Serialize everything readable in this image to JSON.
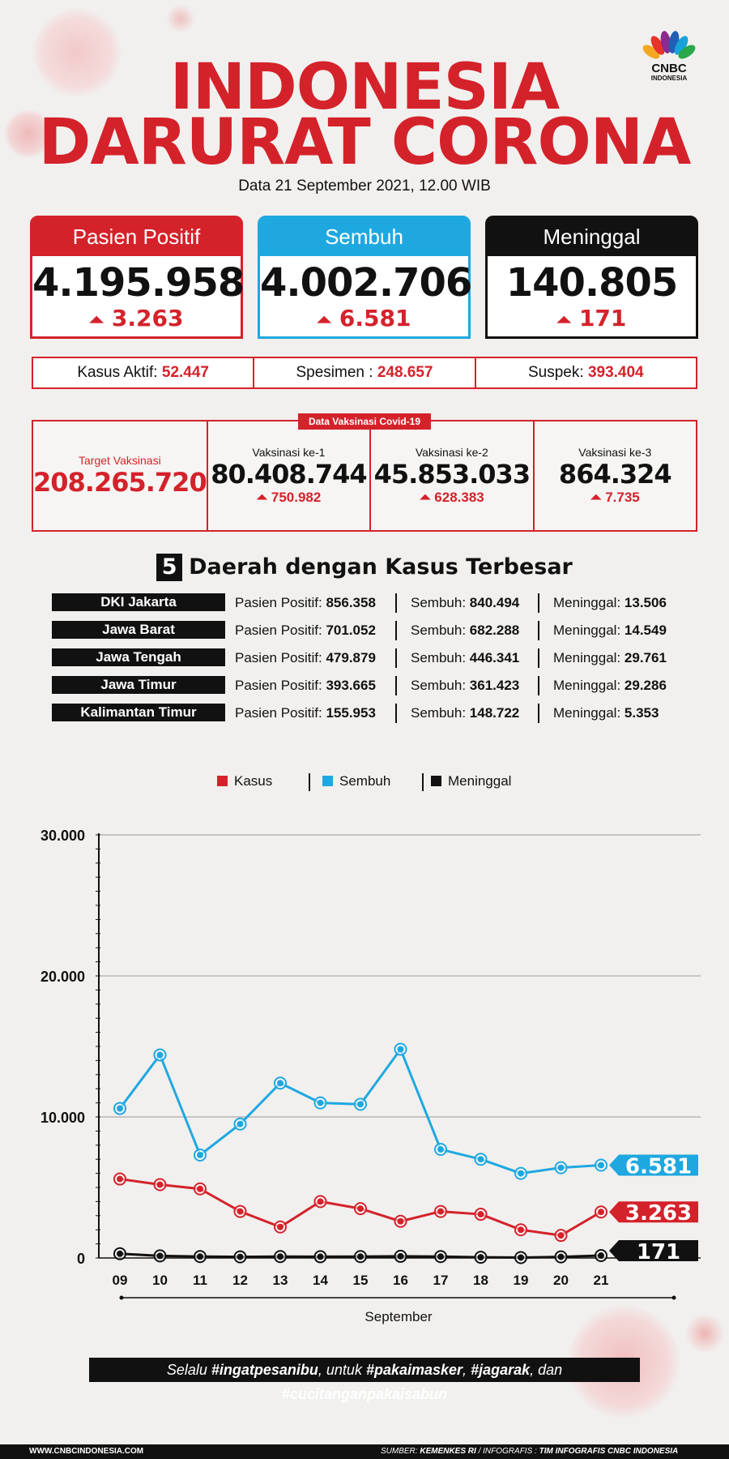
{
  "header": {
    "title_line1": "INDONESIA",
    "title_line2": "DARURAT CORONA",
    "logo_text": "CNBC",
    "logo_sub": "INDONESIA",
    "date": "Data 21 September 2021, 12.00 WIB"
  },
  "cards": [
    {
      "label": "Pasien Positif",
      "value": "4.195.958",
      "delta": "3.263",
      "color": "#d4222b"
    },
    {
      "label": "Sembuh",
      "value": "4.002.706",
      "delta": "6.581",
      "color": "#1fa8e0"
    },
    {
      "label": "Meninggal",
      "value": "140.805",
      "delta": "171",
      "color": "#111111"
    }
  ],
  "summary": [
    {
      "label": "Kasus Aktif:",
      "value": "52.447"
    },
    {
      "label": "Spesimen :",
      "value": "248.657"
    },
    {
      "label": "Suspek:",
      "value": "393.404"
    }
  ],
  "vaccine": {
    "tag": "Data Vaksinasi Covid-19",
    "target_label": "Target Vaksinasi",
    "target_value": "208.265.720",
    "doses": [
      {
        "label": "Vaksinasi ke-1",
        "value": "80.408.744",
        "delta": "750.982"
      },
      {
        "label": "Vaksinasi ke-2",
        "value": "45.853.033",
        "delta": "628.383"
      },
      {
        "label": "Vaksinasi ke-3",
        "value": "864.324",
        "delta": "7.735"
      }
    ]
  },
  "regions": {
    "number": "5",
    "title": "Daerah dengan Kasus Terbesar",
    "label_positif": "Pasien Positif:",
    "label_sembuh": "Sembuh:",
    "label_meninggal": "Meninggal:",
    "rows": [
      {
        "name": "DKI Jakarta",
        "positif": "856.358",
        "sembuh": "840.494",
        "meninggal": "13.506"
      },
      {
        "name": "Jawa Barat",
        "positif": "701.052",
        "sembuh": "682.288",
        "meninggal": "14.549"
      },
      {
        "name": "Jawa Tengah",
        "positif": "479.879",
        "sembuh": "446.341",
        "meninggal": "29.761"
      },
      {
        "name": "Jawa Timur",
        "positif": "393.665",
        "sembuh": "361.423",
        "meninggal": "29.286"
      },
      {
        "name": "Kalimantan Timur",
        "positif": "155.953",
        "sembuh": "148.722",
        "meninggal": "5.353"
      }
    ]
  },
  "chart_data": {
    "type": "line",
    "x": [
      "09",
      "10",
      "11",
      "12",
      "13",
      "14",
      "15",
      "16",
      "17",
      "18",
      "19",
      "20",
      "21"
    ],
    "xlabel": "September",
    "ylabel": "",
    "ylim": [
      0,
      30000
    ],
    "yticks": [
      0,
      10000,
      20000,
      30000
    ],
    "ytick_labels": [
      "0",
      "10.000",
      "20.000",
      "30.000"
    ],
    "grid": true,
    "legend_position": "top",
    "series": [
      {
        "name": "Kasus",
        "color": "#d4222b",
        "end_label": "3.263",
        "values": [
          5600,
          5200,
          4900,
          3300,
          2200,
          4000,
          3500,
          2600,
          3300,
          3100,
          2000,
          1600,
          3263
        ]
      },
      {
        "name": "Sembuh",
        "color": "#1fa8e0",
        "end_label": "6.581",
        "values": [
          10600,
          14400,
          7300,
          9500,
          12400,
          11000,
          10900,
          14800,
          7700,
          7000,
          6000,
          6400,
          6581
        ]
      },
      {
        "name": "Meninggal",
        "color": "#111111",
        "end_label": "171",
        "values": [
          300,
          150,
          100,
          80,
          100,
          90,
          100,
          120,
          100,
          50,
          30,
          80,
          171
        ]
      }
    ]
  },
  "footer": {
    "tagline_pre": "Selalu ",
    "tag1": "#ingatpesanibu",
    "tagline_mid": ", untuk ",
    "tag2": "#pakaimasker",
    "sep1": ", ",
    "tag3": "#jagarak",
    "sep2": ", dan ",
    "tag4": "#cucitanganpakaisabun",
    "site": "WWW.CNBCINDONESIA.COM",
    "source_label": "SUMBER: ",
    "source_value": "KEMENKES RI",
    "credit_sep": " / INFOGRAFIS : ",
    "credit_value": "TIM INFOGRAFIS CNBC INDONESIA"
  }
}
